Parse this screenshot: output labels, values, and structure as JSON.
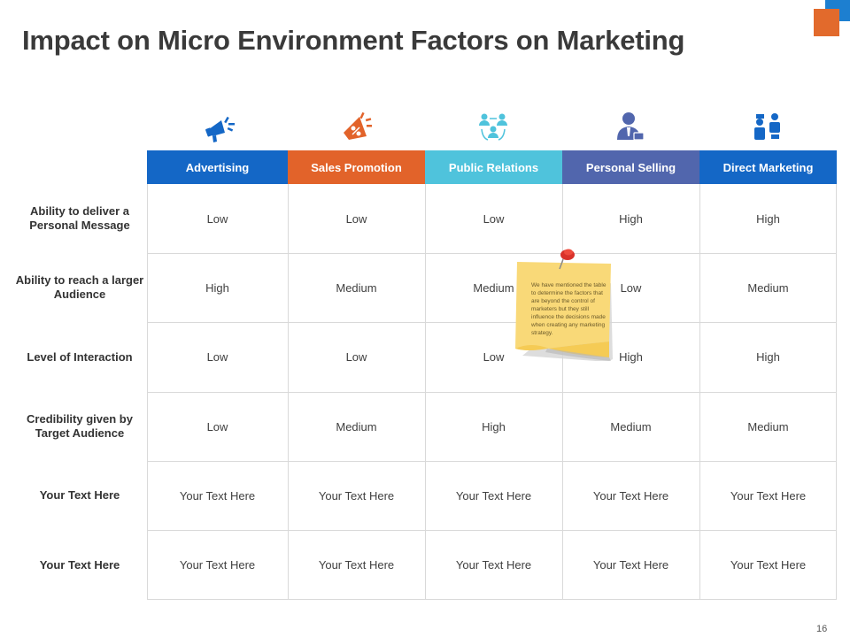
{
  "slide": {
    "title": "Impact on Micro Environment Factors on Marketing",
    "page_number": "16"
  },
  "colors": {
    "advertising": "#1467c6",
    "sales_promotion": "#e2632a",
    "public_relations": "#4fc3dc",
    "personal_selling": "#5166ad",
    "direct_marketing": "#1467c6",
    "accent_orange": "#e26a2c",
    "accent_blue": "#1d7fd0"
  },
  "columns": [
    {
      "label": "Advertising",
      "icon": "megaphone-icon"
    },
    {
      "label": "Sales Promotion",
      "icon": "discount-megaphone-icon"
    },
    {
      "label": "Public Relations",
      "icon": "people-network-icon"
    },
    {
      "label": "Personal Selling",
      "icon": "salesperson-icon"
    },
    {
      "label": "Direct Marketing",
      "icon": "two-people-icon"
    }
  ],
  "rows": [
    {
      "label": "Ability to deliver a Personal Message",
      "values": [
        "Low",
        "Low",
        "Low",
        "High",
        "High"
      ]
    },
    {
      "label": "Ability to reach a larger Audience",
      "values": [
        "High",
        "Medium",
        "Medium",
        "Low",
        "Medium"
      ]
    },
    {
      "label": "Level of Interaction",
      "values": [
        "Low",
        "Low",
        "Low",
        "High",
        "High"
      ]
    },
    {
      "label": "Credibility given by Target Audience",
      "values": [
        "Low",
        "Medium",
        "High",
        "Medium",
        "Medium"
      ]
    },
    {
      "label": "Your Text Here",
      "values": [
        "Your Text Here",
        "Your Text Here",
        "Your Text Here",
        "Your Text Here",
        "Your Text Here"
      ]
    },
    {
      "label": "Your Text Here",
      "values": [
        "Your Text Here",
        "Your Text Here",
        "Your Text Here",
        "Your Text Here",
        "Your Text Here"
      ]
    }
  ],
  "sticky_note": {
    "text": "We have mentioned the table to determine the factors that are beyond the control of marketers but they still influence the decisions made when creating any marketing strategy.",
    "icon": "push-pin-icon"
  }
}
